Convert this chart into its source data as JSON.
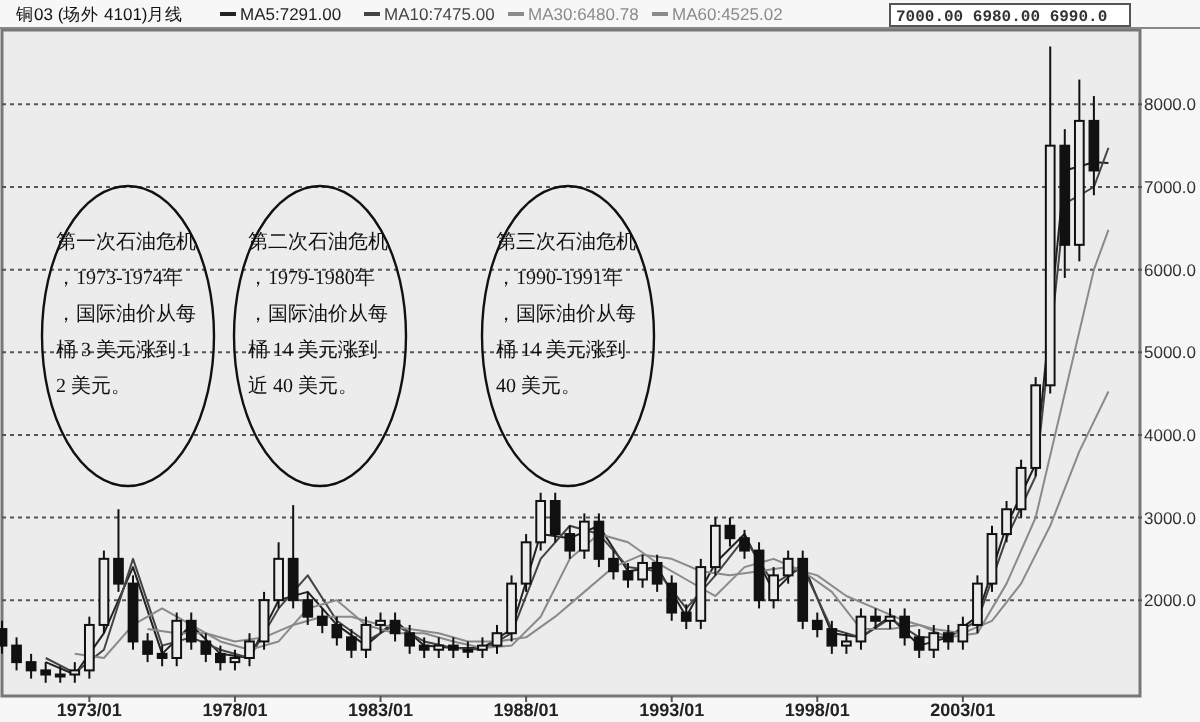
{
  "chart_data": {
    "type": "candlestick",
    "title": "铜03 (场外 4101)月线",
    "x": [
      "1970-01",
      "1970-07",
      "1971-01",
      "1971-07",
      "1972-01",
      "1972-07",
      "1973-01",
      "1973-07",
      "1974-01",
      "1974-07",
      "1975-01",
      "1975-07",
      "1976-01",
      "1976-07",
      "1977-01",
      "1977-07",
      "1978-01",
      "1978-07",
      "1979-01",
      "1979-07",
      "1980-01",
      "1980-07",
      "1981-01",
      "1981-07",
      "1982-01",
      "1982-07",
      "1983-01",
      "1983-07",
      "1984-01",
      "1984-07",
      "1985-01",
      "1985-07",
      "1986-01",
      "1986-07",
      "1987-01",
      "1987-07",
      "1988-01",
      "1988-07",
      "1989-01",
      "1989-07",
      "1990-01",
      "1990-07",
      "1991-01",
      "1991-07",
      "1992-01",
      "1992-07",
      "1993-01",
      "1993-07",
      "1994-01",
      "1994-07",
      "1995-01",
      "1995-07",
      "1996-01",
      "1996-07",
      "1997-01",
      "1997-07",
      "1998-01",
      "1998-07",
      "1999-01",
      "1999-07",
      "2000-01",
      "2000-07",
      "2001-01",
      "2001-07",
      "2002-01",
      "2002-07",
      "2003-01",
      "2003-07",
      "2004-01",
      "2004-07",
      "2005-01",
      "2005-07",
      "2006-01",
      "2006-07",
      "2007-01",
      "2007-07"
    ],
    "ohlc": [
      [
        1650,
        1750,
        1350,
        1450
      ],
      [
        1450,
        1550,
        1150,
        1250
      ],
      [
        1250,
        1350,
        1050,
        1150
      ],
      [
        1150,
        1250,
        1000,
        1100
      ],
      [
        1100,
        1200,
        1000,
        1100
      ],
      [
        1100,
        1250,
        1000,
        1150
      ],
      [
        1150,
        1800,
        1050,
        1700
      ],
      [
        1700,
        2600,
        1600,
        2500
      ],
      [
        2500,
        3100,
        2100,
        2200
      ],
      [
        2200,
        2300,
        1400,
        1500
      ],
      [
        1500,
        1600,
        1250,
        1350
      ],
      [
        1350,
        1450,
        1200,
        1300
      ],
      [
        1300,
        1850,
        1200,
        1750
      ],
      [
        1750,
        1850,
        1400,
        1500
      ],
      [
        1500,
        1600,
        1250,
        1350
      ],
      [
        1350,
        1450,
        1150,
        1250
      ],
      [
        1250,
        1400,
        1150,
        1300
      ],
      [
        1300,
        1600,
        1200,
        1500
      ],
      [
        1500,
        2100,
        1400,
        2000
      ],
      [
        2000,
        2700,
        1900,
        2500
      ],
      [
        2500,
        3150,
        1900,
        2000
      ],
      [
        2000,
        2100,
        1700,
        1800
      ],
      [
        1800,
        1900,
        1600,
        1700
      ],
      [
        1700,
        1800,
        1450,
        1550
      ],
      [
        1550,
        1650,
        1300,
        1400
      ],
      [
        1400,
        1800,
        1300,
        1700
      ],
      [
        1700,
        1850,
        1600,
        1750
      ],
      [
        1750,
        1850,
        1500,
        1600
      ],
      [
        1600,
        1700,
        1350,
        1450
      ],
      [
        1450,
        1550,
        1300,
        1400
      ],
      [
        1400,
        1550,
        1300,
        1450
      ],
      [
        1450,
        1550,
        1300,
        1400
      ],
      [
        1400,
        1500,
        1300,
        1400
      ],
      [
        1400,
        1550,
        1300,
        1450
      ],
      [
        1450,
        1700,
        1350,
        1600
      ],
      [
        1600,
        2300,
        1500,
        2200
      ],
      [
        2200,
        2800,
        2100,
        2700
      ],
      [
        2700,
        3300,
        2600,
        3200
      ],
      [
        3200,
        3300,
        2700,
        2800
      ],
      [
        2800,
        2900,
        2500,
        2600
      ],
      [
        2600,
        3050,
        2500,
        2950
      ],
      [
        2950,
        3050,
        2400,
        2500
      ],
      [
        2500,
        2600,
        2250,
        2350
      ],
      [
        2350,
        2450,
        2150,
        2250
      ],
      [
        2250,
        2550,
        2150,
        2450
      ],
      [
        2450,
        2550,
        2100,
        2200
      ],
      [
        2200,
        2300,
        1750,
        1850
      ],
      [
        1850,
        1950,
        1650,
        1750
      ],
      [
        1750,
        2500,
        1650,
        2400
      ],
      [
        2400,
        3000,
        2300,
        2900
      ],
      [
        2900,
        3000,
        2650,
        2750
      ],
      [
        2750,
        2850,
        2500,
        2600
      ],
      [
        2600,
        2700,
        1900,
        2000
      ],
      [
        2000,
        2400,
        1900,
        2300
      ],
      [
        2300,
        2600,
        2200,
        2500
      ],
      [
        2500,
        2600,
        1650,
        1750
      ],
      [
        1750,
        1850,
        1550,
        1650
      ],
      [
        1650,
        1750,
        1350,
        1450
      ],
      [
        1450,
        1600,
        1350,
        1500
      ],
      [
        1500,
        1900,
        1400,
        1800
      ],
      [
        1800,
        1900,
        1650,
        1750
      ],
      [
        1750,
        1900,
        1650,
        1800
      ],
      [
        1800,
        1900,
        1450,
        1550
      ],
      [
        1550,
        1650,
        1300,
        1400
      ],
      [
        1400,
        1700,
        1300,
        1600
      ],
      [
        1600,
        1700,
        1400,
        1500
      ],
      [
        1500,
        1800,
        1400,
        1700
      ],
      [
        1700,
        2300,
        1600,
        2200
      ],
      [
        2200,
        2900,
        2100,
        2800
      ],
      [
        2800,
        3200,
        2700,
        3100
      ],
      [
        3100,
        3700,
        3000,
        3600
      ],
      [
        3600,
        4700,
        3500,
        4600
      ],
      [
        4600,
        8700,
        4500,
        7500
      ],
      [
        7500,
        7700,
        5900,
        6300
      ],
      [
        6300,
        8300,
        6100,
        7800
      ],
      [
        7800,
        8100,
        6900,
        7200
      ]
    ],
    "series": [
      {
        "name": "MA5:7291.00",
        "type": "line",
        "color": "#222222",
        "x": [
          "1971-07",
          "1972-07",
          "1973-07",
          "1974-07",
          "1975-07",
          "1976-07",
          "1977-07",
          "1978-07",
          "1979-07",
          "1980-07",
          "1981-07",
          "1982-07",
          "1983-07",
          "1984-07",
          "1985-07",
          "1986-07",
          "1987-07",
          "1988-07",
          "1989-07",
          "1990-07",
          "1991-07",
          "1992-07",
          "1993-07",
          "1994-07",
          "1995-07",
          "1996-07",
          "1997-07",
          "1998-07",
          "1999-07",
          "2000-07",
          "2001-07",
          "2002-07",
          "2003-07",
          "2004-07",
          "2005-07",
          "2006-07",
          "2007-07",
          "2008-01"
        ],
        "values": [
          1250,
          1100,
          1600,
          2400,
          1350,
          1700,
          1350,
          1300,
          2000,
          2100,
          1700,
          1450,
          1750,
          1450,
          1420,
          1420,
          1650,
          2800,
          2750,
          2900,
          2350,
          2400,
          1800,
          2450,
          2800,
          2100,
          2450,
          1600,
          1550,
          1800,
          1450,
          1550,
          1800,
          2900,
          3650,
          7200,
          7300,
          7291
        ]
      },
      {
        "name": "MA10:7475.00",
        "type": "line",
        "color": "#444444",
        "x": [
          "1971-07",
          "1972-07",
          "1973-07",
          "1974-07",
          "1975-07",
          "1976-07",
          "1977-07",
          "1978-07",
          "1979-07",
          "1980-07",
          "1981-07",
          "1982-07",
          "1983-07",
          "1984-07",
          "1985-07",
          "1986-07",
          "1987-07",
          "1988-07",
          "1989-07",
          "1990-07",
          "1991-07",
          "1992-07",
          "1993-07",
          "1994-07",
          "1995-07",
          "1996-07",
          "1997-07",
          "1998-07",
          "1999-07",
          "2000-07",
          "2001-07",
          "2002-07",
          "2003-07",
          "2004-07",
          "2005-07",
          "2006-07",
          "2007-07",
          "2008-01"
        ],
        "values": [
          1300,
          1120,
          1400,
          2500,
          1450,
          1550,
          1400,
          1300,
          1900,
          2300,
          1750,
          1500,
          1700,
          1500,
          1420,
          1400,
          1600,
          2500,
          2900,
          2800,
          2400,
          2350,
          1900,
          2300,
          2750,
          2200,
          2400,
          1650,
          1550,
          1780,
          1550,
          1550,
          1750,
          2750,
          3500,
          6800,
          7000,
          7475
        ]
      },
      {
        "name": "MA30:6480.78",
        "type": "line",
        "color": "#8a8a8a",
        "x": [
          "1972-07",
          "1973-07",
          "1974-07",
          "1975-07",
          "1976-07",
          "1977-07",
          "1978-07",
          "1979-07",
          "1980-07",
          "1981-07",
          "1982-07",
          "1983-07",
          "1984-07",
          "1985-07",
          "1986-07",
          "1987-07",
          "1988-07",
          "1989-07",
          "1990-07",
          "1991-07",
          "1992-07",
          "1993-07",
          "1994-07",
          "1995-07",
          "1996-07",
          "1997-07",
          "1998-07",
          "1999-07",
          "2000-07",
          "2001-07",
          "2002-07",
          "2003-07",
          "2004-07",
          "2005-07",
          "2006-07",
          "2007-07",
          "2008-01"
        ],
        "values": [
          1350,
          1300,
          1700,
          1900,
          1700,
          1500,
          1400,
          1500,
          1900,
          2000,
          1700,
          1600,
          1600,
          1500,
          1420,
          1450,
          1800,
          2500,
          2800,
          2700,
          2450,
          2250,
          2050,
          2400,
          2500,
          2350,
          2100,
          1650,
          1650,
          1700,
          1550,
          1600,
          2200,
          3000,
          4500,
          6000,
          6480
        ]
      },
      {
        "name": "MA60:4525.02",
        "type": "line",
        "color": "#8a8a8a",
        "x": [
          "1975-01",
          "1976-01",
          "1977-01",
          "1978-01",
          "1979-01",
          "1980-01",
          "1981-01",
          "1982-01",
          "1983-01",
          "1984-01",
          "1985-01",
          "1986-01",
          "1987-01",
          "1988-01",
          "1989-01",
          "1990-01",
          "1991-01",
          "1992-01",
          "1993-01",
          "1994-01",
          "1995-01",
          "1996-01",
          "1997-01",
          "1998-01",
          "1999-01",
          "2000-01",
          "2001-01",
          "2002-01",
          "2003-01",
          "2004-01",
          "2005-01",
          "2006-01",
          "2007-01",
          "2008-01"
        ],
        "values": [
          1650,
          1600,
          1600,
          1500,
          1550,
          1700,
          1800,
          1800,
          1700,
          1650,
          1600,
          1500,
          1500,
          1550,
          1800,
          2100,
          2400,
          2550,
          2500,
          2350,
          2300,
          2350,
          2400,
          2300,
          2050,
          1900,
          1750,
          1650,
          1600,
          1750,
          2200,
          2900,
          3800,
          4525
        ]
      }
    ],
    "xlim": [
      "1970-01",
      "2009-02"
    ],
    "xticks": [
      {
        "value": "1973-01",
        "label": "1973/01"
      },
      {
        "value": "1978-01",
        "label": "1978/01"
      },
      {
        "value": "1983-01",
        "label": "1983/01"
      },
      {
        "value": "1988-01",
        "label": "1988/01"
      },
      {
        "value": "1993-01",
        "label": "1993/01"
      },
      {
        "value": "1998-01",
        "label": "1998/01"
      },
      {
        "value": "2003-01",
        "label": "2003/01"
      }
    ],
    "ylim": [
      840,
      8900
    ],
    "yticks": [
      {
        "value": 2000,
        "label": "2000.0"
      },
      {
        "value": 3000,
        "label": "3000.0"
      },
      {
        "value": 4000,
        "label": "4000.0"
      },
      {
        "value": 5000,
        "label": "5000.0"
      },
      {
        "value": 6000,
        "label": "6000.0"
      },
      {
        "value": 7000,
        "label": "7000.0"
      },
      {
        "value": 8000,
        "label": "8000.0"
      }
    ],
    "grid": "y",
    "legend": "top",
    "annotations": [
      "第一次石油危机，1973-1974年，国际油价从每桶 3 美元涨到 12 美元。",
      "第二次石油危机，1979-1980年，国际油价从每桶 14 美元涨到近 40 美元。",
      "第三次石油危机，1990-1991年，国际油价从每桶 14 美元涨到 40 美元。",
      "7000.00 6980.00 6990.0"
    ]
  }
}
